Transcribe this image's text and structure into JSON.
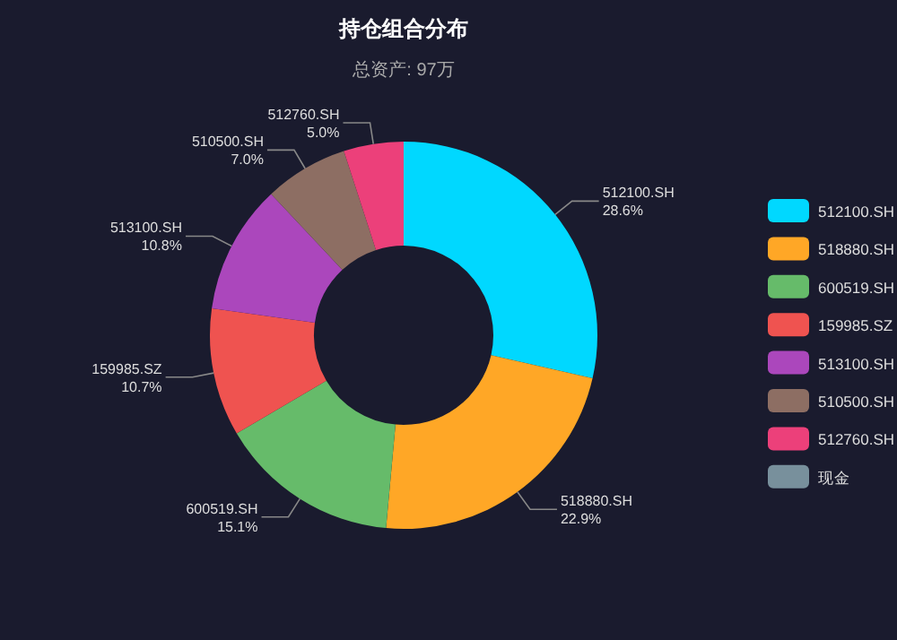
{
  "chart_data": {
    "type": "donut",
    "title": "持仓组合分布",
    "subtitle": "总资产: 97万",
    "categories": [
      "512100.SH",
      "518880.SH",
      "600519.SH",
      "159985.SZ",
      "513100.SH",
      "510500.SH",
      "512760.SH",
      "现金"
    ],
    "values": [
      28.6,
      22.9,
      15.1,
      10.7,
      10.8,
      7.0,
      5.0,
      0
    ],
    "value_labels": [
      "28.6%",
      "22.9%",
      "15.1%",
      "10.7%",
      "10.8%",
      "7.0%",
      "5.0%",
      null
    ],
    "colors": [
      "#00d8ff",
      "#ffa726",
      "#66bb6a",
      "#ef5350",
      "#ab47bc",
      "#8d6e63",
      "#ec407a",
      "#78909c"
    ],
    "legend": "right"
  }
}
